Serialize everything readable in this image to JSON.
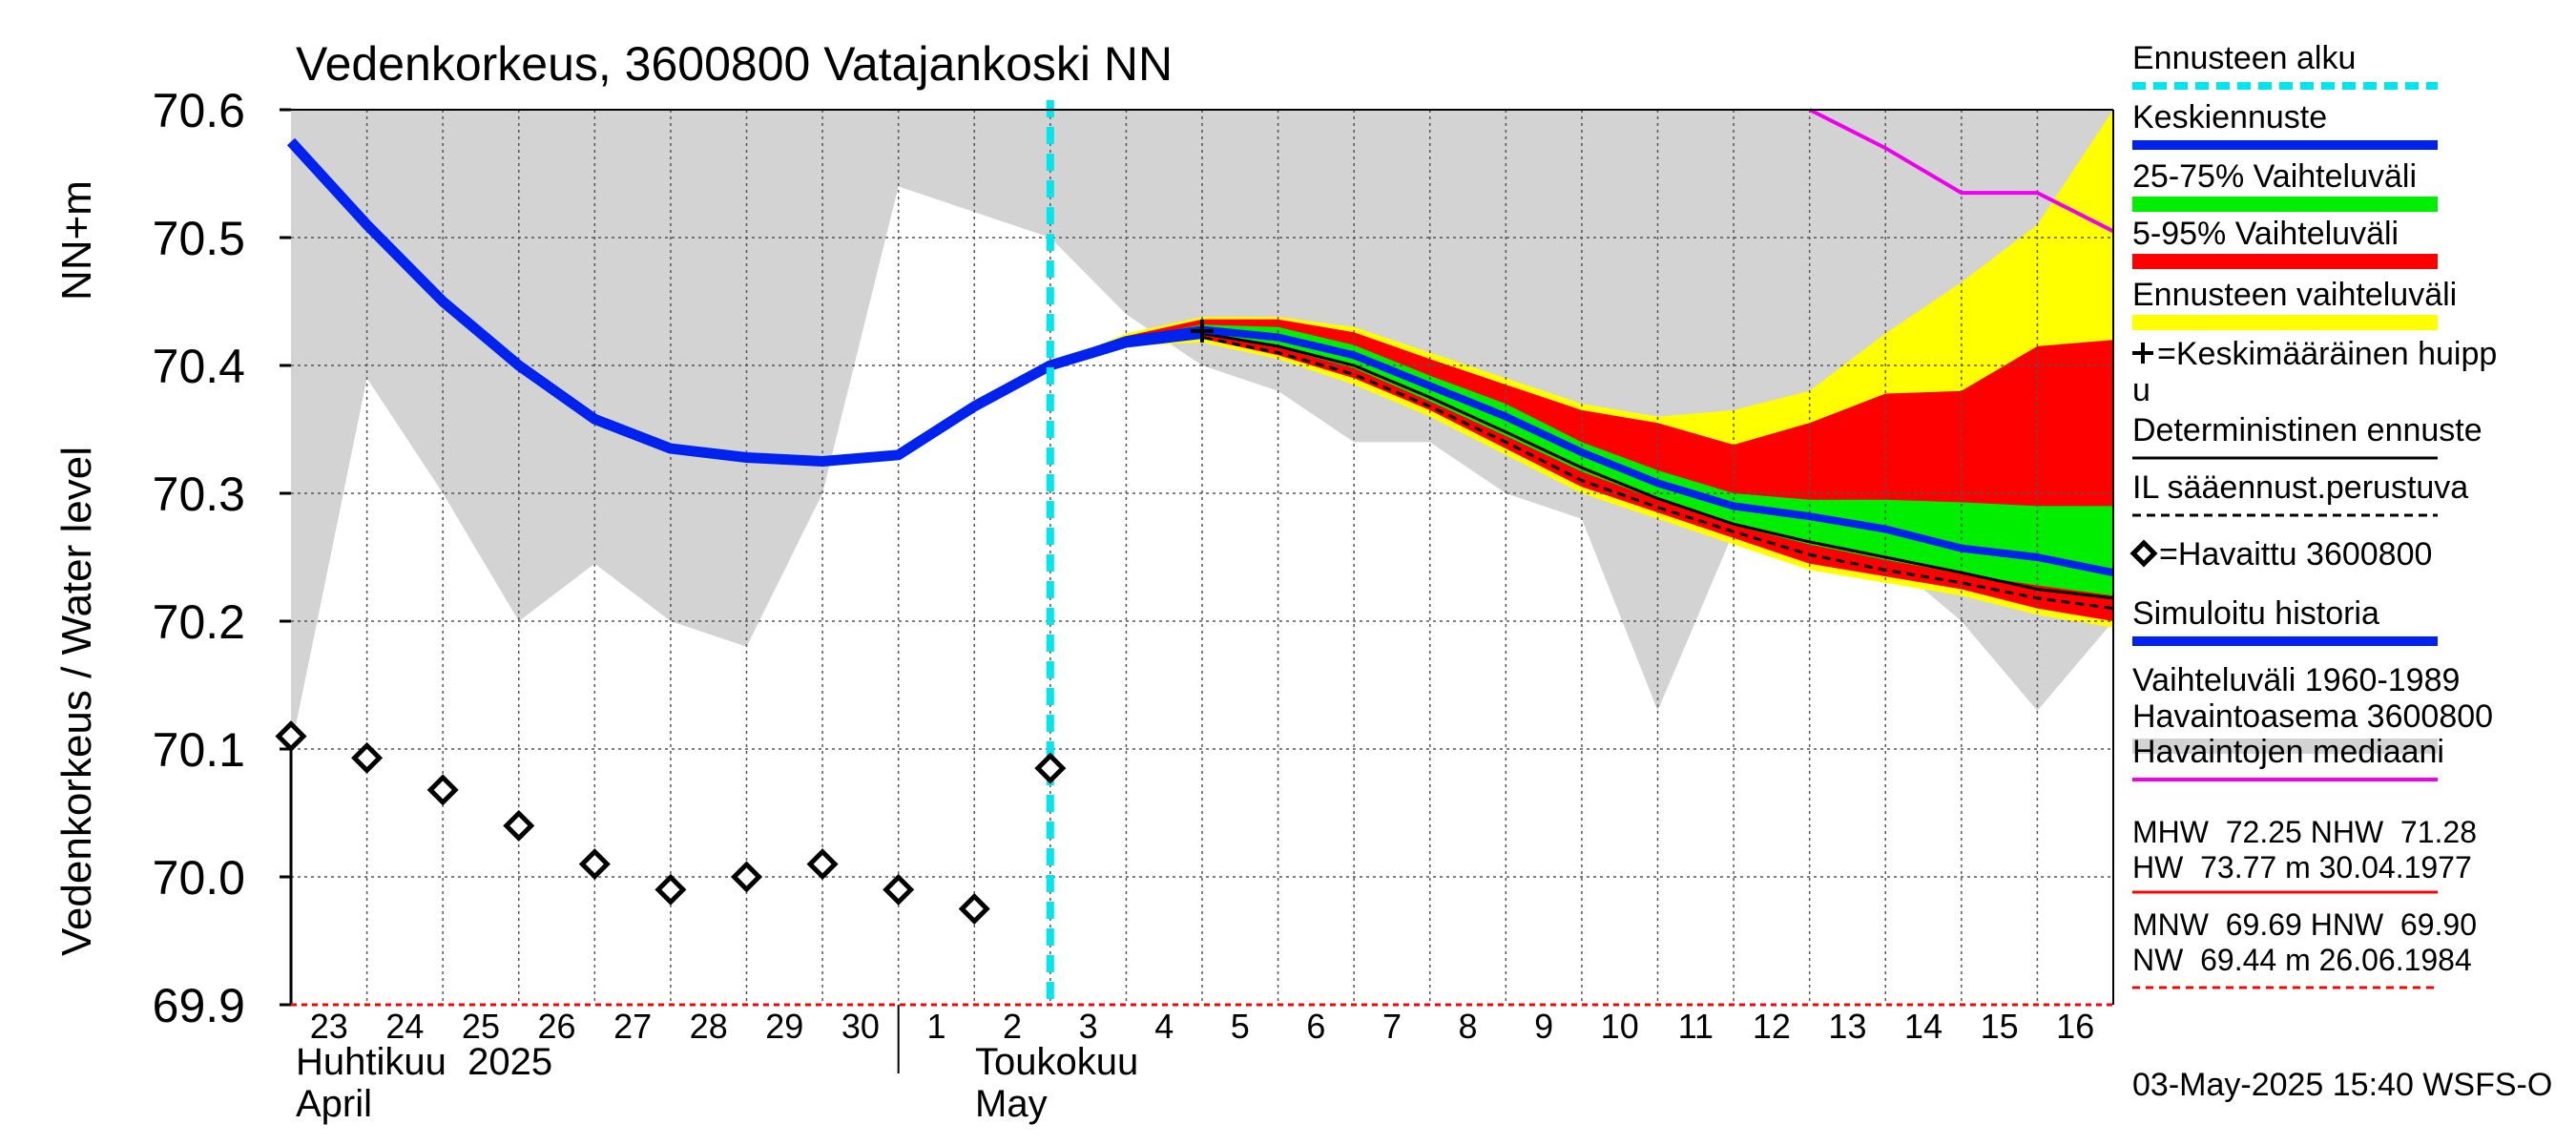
{
  "chart_data": {
    "type": "line",
    "title": "Vedenkorkeus, 3600800 Vatajankoski NN",
    "ylabel_fi": "Vedenkorkeus / Water level",
    "ylabel_unit": "NN+m",
    "ylim": [
      69.9,
      70.6
    ],
    "yticks": [
      "70.6",
      "70.5",
      "70.4",
      "70.3",
      "70.2",
      "70.1",
      "70.0",
      "69.9"
    ],
    "yticks_values": [
      70.6,
      70.5,
      70.4,
      70.3,
      70.2,
      70.1,
      70.0,
      69.9
    ],
    "x_start_date": "2025-04-23",
    "x_days": 24,
    "day_labels": [
      "23",
      "24",
      "25",
      "26",
      "27",
      "28",
      "29",
      "30",
      "1",
      "2",
      "3",
      "4",
      "5",
      "6",
      "7",
      "8",
      "9",
      "10",
      "11",
      "12",
      "13",
      "14",
      "15",
      "16"
    ],
    "month_fi_1": "Huhtikuu  2025",
    "month_en_1": "April",
    "month_fi_2": "Toukokuu",
    "month_en_2": "May",
    "forecast_start_day": 10.0,
    "grid": true,
    "legend_position": "right",
    "legend": [
      {
        "key": "forecast_start",
        "label": "Ennusteen alku",
        "color": "#00e5ee",
        "style": "dashed"
      },
      {
        "key": "mean_forecast",
        "label": "Keskiennuste",
        "color": "#0022ee",
        "style": "solid"
      },
      {
        "key": "range_25_75",
        "label": "25-75% Vaihteluväli",
        "color": "#00ee00",
        "style": "band"
      },
      {
        "key": "range_5_95",
        "label": "5-95% Vaihteluväli",
        "color": "#ff0000",
        "style": "band"
      },
      {
        "key": "forecast_range",
        "label": "Ennusteen vaihteluväli",
        "color": "#ffff00",
        "style": "band"
      },
      {
        "key": "mean_peak",
        "label": "=Keskimääräinen huipp",
        "label2": "u",
        "color": "#000000",
        "style": "plus"
      },
      {
        "key": "deterministic",
        "label": "Deterministinen ennuste",
        "color": "#000000",
        "style": "solid"
      },
      {
        "key": "il_forecast",
        "label": "IL sääennust.perustuva",
        "color": "#000000",
        "style": "dashed"
      },
      {
        "key": "observed",
        "label": "=Havaittu 3600800",
        "color": "#000000",
        "style": "diamond"
      },
      {
        "key": "sim_history",
        "label": "Simuloitu historia",
        "color": "#0022ee",
        "style": "solid"
      },
      {
        "key": "hist_range",
        "label": "Vaihteluväli 1960-1989",
        "label2": " Havaintoasema 3600800",
        "color": "#d3d3d3",
        "style": "band"
      },
      {
        "key": "obs_median",
        "label": "Havaintojen mediaani",
        "color": "#ee00ee",
        "style": "solid"
      }
    ],
    "stats_high_1": "MHW  72.25 NHW  71.28",
    "stats_high_2": "HW  73.77 m 30.04.1977",
    "stats_low_1": "MNW  69.69 HNW  69.90",
    "stats_low_2": "NW  69.44 m 26.06.1984",
    "timestamp": "03-May-2025 15:40 WSFS-O",
    "series": {
      "hist_max": {
        "x": [
          0,
          1,
          2,
          3,
          4,
          5,
          6,
          7,
          8,
          9,
          10,
          11,
          12,
          13,
          14,
          15,
          16,
          17,
          18,
          19,
          20,
          21,
          22,
          23,
          24
        ],
        "values": [
          70.6,
          70.6,
          70.6,
          70.6,
          70.6,
          70.6,
          70.6,
          70.6,
          70.6,
          70.6,
          70.6,
          70.6,
          70.6,
          70.6,
          70.6,
          70.6,
          70.6,
          70.6,
          70.6,
          70.6,
          70.6,
          70.6,
          70.6,
          70.6,
          70.6
        ]
      },
      "hist_min": {
        "x": [
          0,
          1,
          2,
          3,
          4,
          5,
          6,
          7,
          8,
          9,
          10,
          11,
          12,
          13,
          14,
          15,
          16,
          17,
          18,
          19,
          20,
          21,
          22,
          23,
          24
        ],
        "values": [
          70.1,
          70.39,
          70.3,
          70.2,
          70.245,
          70.2,
          70.18,
          70.3,
          70.54,
          70.52,
          70.5,
          70.44,
          70.4,
          70.38,
          70.34,
          70.34,
          70.3,
          70.28,
          70.13,
          70.27,
          70.25,
          70.25,
          70.2,
          70.13,
          70.2
        ]
      },
      "forecast_range": {
        "x": [
          10,
          11,
          12,
          13,
          14,
          15,
          16,
          17,
          18,
          19,
          20,
          21,
          22,
          23,
          24
        ],
        "upper": [
          70.4,
          70.425,
          70.438,
          70.438,
          70.43,
          70.41,
          70.39,
          70.37,
          70.36,
          70.365,
          70.38,
          70.425,
          70.465,
          70.51,
          70.6
        ],
        "lower": [
          70.4,
          70.415,
          70.418,
          70.405,
          70.385,
          70.36,
          70.33,
          70.3,
          70.28,
          70.26,
          70.24,
          70.23,
          70.22,
          70.205,
          70.195
        ]
      },
      "range_5_95": {
        "x": [
          10,
          11,
          12,
          13,
          14,
          15,
          16,
          17,
          18,
          19,
          20,
          21,
          22,
          23,
          24
        ],
        "upper": [
          70.4,
          70.423,
          70.436,
          70.436,
          70.426,
          70.405,
          70.385,
          70.365,
          70.355,
          70.338,
          70.355,
          70.378,
          70.38,
          70.415,
          70.42
        ]
      },
      "range_5_95_lower": {
        "x": [
          10,
          11,
          12,
          13,
          14,
          15,
          16,
          17,
          18,
          19,
          20,
          21,
          22,
          23,
          24
        ],
        "values": [
          70.4,
          70.417,
          70.421,
          70.408,
          70.39,
          70.365,
          70.335,
          70.305,
          70.285,
          70.265,
          70.245,
          70.235,
          70.225,
          70.21,
          70.2
        ]
      },
      "range_25_75": {
        "x": [
          10,
          11,
          12,
          13,
          14,
          15,
          16,
          17,
          18,
          19,
          20,
          21,
          22,
          23,
          24
        ],
        "upper": [
          70.4,
          70.421,
          70.432,
          70.43,
          70.416,
          70.392,
          70.37,
          70.34,
          70.318,
          70.3,
          70.295,
          70.295,
          70.293,
          70.29,
          70.29
        ],
        "lower": [
          70.4,
          70.418,
          70.424,
          70.414,
          70.398,
          70.372,
          70.345,
          70.317,
          70.295,
          70.275,
          70.26,
          70.248,
          70.237,
          70.228,
          70.22
        ]
      },
      "mean_forecast": {
        "x": [
          10,
          11,
          12,
          13,
          14,
          15,
          16,
          17,
          18,
          19,
          20,
          21,
          22,
          23,
          24
        ],
        "values": [
          70.4,
          70.42,
          70.428,
          70.422,
          70.408,
          70.384,
          70.36,
          70.332,
          70.308,
          70.29,
          70.282,
          70.272,
          70.257,
          70.25,
          70.238
        ]
      },
      "deterministic": {
        "x": [
          10,
          11,
          12,
          13,
          14,
          15,
          16,
          17,
          18,
          19,
          20,
          21,
          22,
          23,
          24
        ],
        "values": [
          70.4,
          70.419,
          70.425,
          70.415,
          70.4,
          70.375,
          70.348,
          70.32,
          70.296,
          70.276,
          70.262,
          70.25,
          70.238,
          70.225,
          70.218
        ]
      },
      "il_forecast": {
        "x": [
          10,
          11,
          12,
          13,
          14,
          15,
          16,
          17,
          18,
          19,
          20,
          21,
          22,
          23,
          24
        ],
        "values": [
          70.4,
          70.418,
          70.422,
          70.41,
          70.393,
          70.368,
          70.34,
          70.31,
          70.289,
          70.27,
          70.252,
          70.24,
          70.23,
          70.218,
          70.21
        ]
      },
      "sim_history": {
        "x": [
          0,
          1,
          2,
          3,
          4,
          5,
          6,
          7,
          8,
          9,
          10,
          11,
          12
        ],
        "values": [
          70.575,
          70.51,
          70.45,
          70.4,
          70.358,
          70.335,
          70.328,
          70.325,
          70.33,
          70.368,
          70.4,
          70.418,
          70.425
        ]
      },
      "obs_median": {
        "x": [
          20,
          21,
          22,
          23,
          24
        ],
        "values": [
          70.6,
          70.57,
          70.535,
          70.535,
          70.505
        ]
      },
      "observed": {
        "x": [
          0,
          1,
          2,
          3,
          4,
          5,
          6,
          7,
          8,
          9,
          10
        ],
        "values": [
          70.11,
          70.093,
          70.068,
          70.04,
          70.01,
          69.99,
          70.0,
          70.01,
          69.99,
          69.975,
          70.085
        ]
      },
      "mean_peak": {
        "x": [
          12
        ],
        "values": [
          70.427
        ]
      }
    }
  }
}
